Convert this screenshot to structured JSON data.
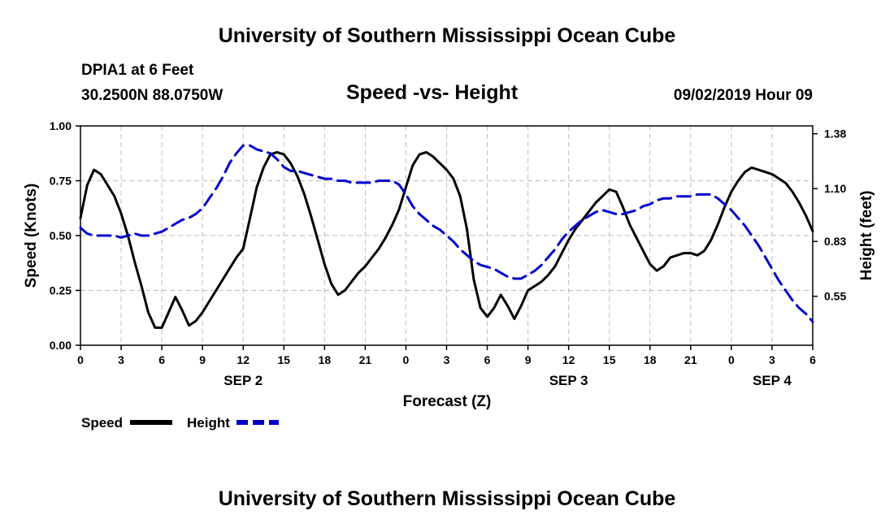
{
  "header": {
    "title": "University of Southern Mississippi Ocean Cube",
    "station": "DPIA1 at 6 Feet",
    "location": "30.2500N 88.0750W",
    "subtitle": "Speed -vs- Height",
    "datetime": "09/02/2019 Hour 09"
  },
  "footer": {
    "title": "University of Southern Mississippi Ocean Cube"
  },
  "chart_data": {
    "type": "line",
    "title": "Speed -vs- Height",
    "xlabel": "Forecast (Z)",
    "ylabel": "Speed (Knots)",
    "y2label": "Height (feet)",
    "x": [
      0,
      0.5,
      1,
      1.5,
      2,
      2.5,
      3,
      3.5,
      4,
      4.5,
      5,
      5.5,
      6,
      6.5,
      7,
      7.5,
      8,
      8.5,
      9,
      9.5,
      10,
      10.5,
      11,
      11.5,
      12,
      12.5,
      13,
      13.5,
      14,
      14.5,
      15,
      15.5,
      16,
      16.5,
      17,
      17.5,
      18,
      18.5,
      19,
      19.5,
      20,
      20.5,
      21,
      21.5,
      22,
      22.5,
      23,
      23.5,
      24,
      24.5,
      25,
      25.5,
      26,
      26.5,
      27,
      27.5,
      28,
      28.5,
      29,
      29.5,
      30,
      30.5,
      31,
      31.5,
      32,
      32.5,
      33,
      33.5,
      34,
      34.5,
      35,
      35.5,
      36,
      36.5,
      37,
      37.5,
      38,
      38.5,
      39,
      39.5,
      40,
      40.5,
      41,
      41.5,
      42,
      42.5,
      43,
      43.5,
      44,
      44.5,
      45,
      45.5,
      46,
      46.5,
      47,
      47.5,
      48,
      48.5,
      49,
      49.5,
      50,
      50.5,
      51,
      51.5,
      52,
      52.5,
      53,
      53.5,
      54
    ],
    "xlim": [
      0,
      54
    ],
    "x_ticks": [
      0,
      3,
      6,
      9,
      12,
      15,
      18,
      21,
      24,
      27,
      30,
      33,
      36,
      39,
      42,
      45,
      48,
      51,
      54
    ],
    "x_tick_labels": [
      "0",
      "3",
      "6",
      "9",
      "12",
      "15",
      "18",
      "21",
      "0",
      "3",
      "6",
      "9",
      "12",
      "15",
      "18",
      "21",
      "0",
      "3",
      "6"
    ],
    "day_labels": [
      {
        "x": 12,
        "label": "SEP 2"
      },
      {
        "x": 36,
        "label": "SEP 3"
      },
      {
        "x": 51,
        "label": "SEP 4"
      }
    ],
    "ylim": [
      0,
      1.0
    ],
    "y_ticks": [
      0,
      0.25,
      0.5,
      0.75,
      1.0
    ],
    "y_tick_labels": [
      "0.00",
      "0.25",
      "0.50",
      "0.75",
      "1.00"
    ],
    "y2lim": [
      0.3,
      1.42
    ],
    "y2_ticks": [
      0.55,
      0.83,
      1.1,
      1.38
    ],
    "y2_tick_labels": [
      "0.55",
      "0.83",
      "1.10",
      "1.38"
    ],
    "grid": true,
    "series": [
      {
        "name": "Speed",
        "color": "#000000",
        "dashed": false,
        "axis": "left",
        "values": [
          0.58,
          0.73,
          0.8,
          0.78,
          0.73,
          0.68,
          0.6,
          0.5,
          0.38,
          0.27,
          0.15,
          0.08,
          0.08,
          0.15,
          0.22,
          0.16,
          0.09,
          0.11,
          0.15,
          0.2,
          0.25,
          0.3,
          0.35,
          0.4,
          0.44,
          0.58,
          0.72,
          0.81,
          0.87,
          0.88,
          0.87,
          0.83,
          0.77,
          0.69,
          0.59,
          0.48,
          0.37,
          0.28,
          0.23,
          0.25,
          0.29,
          0.33,
          0.36,
          0.4,
          0.44,
          0.49,
          0.55,
          0.62,
          0.72,
          0.82,
          0.87,
          0.88,
          0.86,
          0.83,
          0.8,
          0.76,
          0.68,
          0.53,
          0.3,
          0.17,
          0.13,
          0.17,
          0.23,
          0.18,
          0.12,
          0.18,
          0.25,
          0.27,
          0.29,
          0.32,
          0.36,
          0.42,
          0.48,
          0.53,
          0.57,
          0.61,
          0.65,
          0.68,
          0.71,
          0.7,
          0.63,
          0.55,
          0.49,
          0.43,
          0.37,
          0.34,
          0.36,
          0.4,
          0.41,
          0.42,
          0.42,
          0.41,
          0.43,
          0.48,
          0.55,
          0.63,
          0.7,
          0.75,
          0.79,
          0.81,
          0.8,
          0.79,
          0.78,
          0.76,
          0.74,
          0.7,
          0.65,
          0.59,
          0.52
        ]
      },
      {
        "name": "Height",
        "color": "#0000cc",
        "dashed": true,
        "axis": "right",
        "values": [
          0.9,
          0.87,
          0.86,
          0.86,
          0.86,
          0.86,
          0.85,
          0.86,
          0.87,
          0.86,
          0.86,
          0.87,
          0.88,
          0.9,
          0.92,
          0.94,
          0.95,
          0.97,
          1.0,
          1.05,
          1.1,
          1.16,
          1.23,
          1.28,
          1.32,
          1.32,
          1.3,
          1.29,
          1.28,
          1.25,
          1.21,
          1.19,
          1.19,
          1.18,
          1.17,
          1.16,
          1.15,
          1.15,
          1.14,
          1.14,
          1.13,
          1.13,
          1.13,
          1.13,
          1.14,
          1.14,
          1.14,
          1.12,
          1.07,
          1.01,
          0.97,
          0.94,
          0.91,
          0.89,
          0.86,
          0.83,
          0.79,
          0.76,
          0.73,
          0.71,
          0.7,
          0.69,
          0.67,
          0.65,
          0.64,
          0.64,
          0.66,
          0.68,
          0.71,
          0.75,
          0.79,
          0.84,
          0.88,
          0.91,
          0.94,
          0.96,
          0.98,
          0.99,
          0.98,
          0.97,
          0.97,
          0.98,
          0.99,
          1.01,
          1.02,
          1.04,
          1.05,
          1.05,
          1.06,
          1.06,
          1.06,
          1.07,
          1.07,
          1.07,
          1.05,
          1.02,
          0.99,
          0.95,
          0.91,
          0.86,
          0.81,
          0.75,
          0.69,
          0.63,
          0.58,
          0.53,
          0.49,
          0.46,
          0.42
        ]
      }
    ]
  },
  "legend": {
    "speed_label": "Speed",
    "height_label": "Height",
    "speed_color": "#000000",
    "height_color": "#0000cc"
  }
}
